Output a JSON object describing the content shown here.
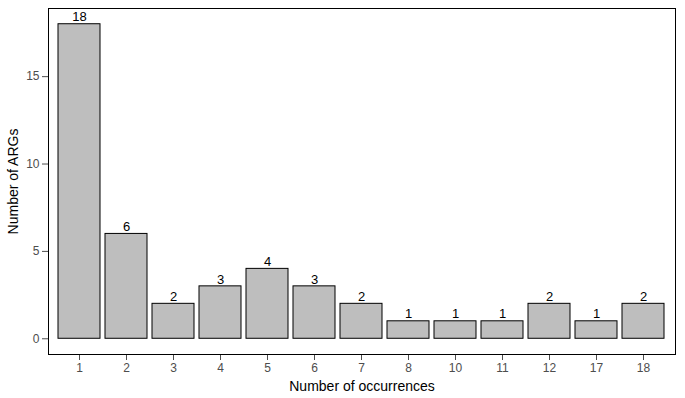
{
  "chart_data": {
    "type": "bar",
    "x_label": "Number of occurrences",
    "y_label": "Number of ARGs",
    "categories": [
      "1",
      "2",
      "3",
      "4",
      "5",
      "6",
      "7",
      "8",
      "10",
      "11",
      "12",
      "17",
      "18"
    ],
    "values": [
      18,
      6,
      2,
      3,
      4,
      3,
      2,
      1,
      1,
      1,
      2,
      1,
      2
    ],
    "color": "#bebebe",
    "ylim": [
      -0.9,
      18.9
    ],
    "yticks": [
      0,
      5,
      10,
      15
    ],
    "grid": false,
    "data_labels": true
  }
}
